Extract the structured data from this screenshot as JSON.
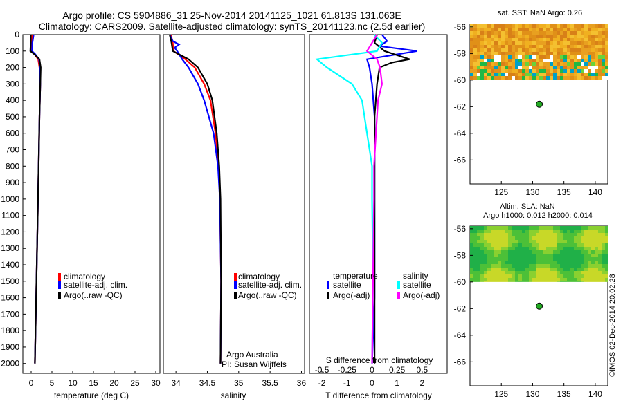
{
  "header": {
    "line1": "Argo profile: CS 5904886_31 25-Nov-2014 20141125_1021 61.813S 131.063E",
    "line2": "Climatology: CARS2009. Satellite-adjusted climatology: synTS_20141123.nc (2.5d earlier)"
  },
  "colors": {
    "climatology": "#ff0000",
    "satellite_clim": "#0000ff",
    "argo": "#000000",
    "s_satellite": "#00ffff",
    "s_argo": "#ff00ff",
    "marker": "#22aa22"
  },
  "credit": "©IMOS 02-Dec-2014 20:02:28",
  "chart_data": [
    {
      "id": "temperature",
      "type": "line",
      "xlabel": "temperature (deg C)",
      "ylabel": "",
      "xlim": [
        -2,
        31
      ],
      "ylim": [
        2060,
        0
      ],
      "xticks": [
        0,
        5,
        10,
        15,
        20,
        25,
        30
      ],
      "xticklabels": [
        "0",
        "5",
        "10",
        "15",
        "20",
        "25",
        "30"
      ],
      "yticks": [
        0,
        100,
        200,
        300,
        400,
        500,
        600,
        700,
        800,
        900,
        1000,
        1100,
        1200,
        1300,
        1400,
        1500,
        1600,
        1700,
        1800,
        1900,
        2000
      ],
      "yticklabels": [
        "0",
        "100",
        "200",
        "300",
        "400",
        "500",
        "600",
        "700",
        "800",
        "900",
        "1000",
        "1100",
        "1200",
        "1300",
        "1400",
        "1500",
        "1600",
        "1700",
        "1800",
        "1900",
        "2000"
      ],
      "legend": [
        "climatology",
        "satellite-adj. clim.",
        "Argo(..raw -QC)"
      ],
      "legend_position": "lower-center",
      "series": [
        {
          "name": "climatology",
          "color": "#ff0000",
          "depth": [
            0,
            50,
            100,
            120,
            150,
            200,
            300,
            500,
            800,
            1200,
            1600,
            2000
          ],
          "values": [
            0.2,
            0.1,
            0.2,
            0.8,
            1.7,
            2.0,
            2.2,
            2.0,
            1.8,
            1.5,
            1.2,
            0.9
          ]
        },
        {
          "name": "satellite-adj. clim.",
          "color": "#0000ff",
          "depth": [
            0,
            50,
            100,
            120,
            150,
            200,
            300,
            500,
            800,
            1200,
            1600,
            2000
          ],
          "values": [
            0.6,
            0.3,
            0.2,
            1.0,
            1.9,
            2.1,
            2.2,
            2.0,
            1.8,
            1.5,
            1.2,
            0.9
          ]
        },
        {
          "name": "Argo(..raw -QC)",
          "color": "#000000",
          "depth": [
            0,
            50,
            100,
            120,
            150,
            200,
            300,
            500,
            800,
            1200,
            1600,
            2000
          ],
          "values": [
            -0.1,
            -0.1,
            -0.2,
            0.8,
            2.0,
            2.3,
            2.2,
            2.0,
            1.8,
            1.5,
            1.2,
            0.9
          ]
        }
      ]
    },
    {
      "id": "salinity",
      "type": "line",
      "xlabel": "salinity",
      "ylabel": "",
      "xlim": [
        33.8,
        36.05
      ],
      "ylim": [
        2060,
        0
      ],
      "xticks": [
        34,
        34.5,
        35,
        35.5,
        36
      ],
      "xticklabels": [
        "34",
        "34.5",
        "35",
        "35.5",
        "36"
      ],
      "legend": [
        "climatology",
        "satellite-adj. clim.",
        "Argo(..raw -QC)"
      ],
      "legend_position": "lower-center",
      "annotations": [
        "Argo Australia",
        "PI: Susan Wijffels"
      ],
      "series": [
        {
          "name": "climatology",
          "color": "#ff0000",
          "depth": [
            0,
            50,
            100,
            150,
            200,
            300,
            400,
            600,
            800,
            1000,
            1500,
            2000
          ],
          "values": [
            33.92,
            33.95,
            33.96,
            34.15,
            34.3,
            34.45,
            34.55,
            34.63,
            34.68,
            34.7,
            34.72,
            34.71
          ]
        },
        {
          "name": "satellite-adj. clim.",
          "color": "#0000ff",
          "depth": [
            0,
            40,
            60,
            80,
            100,
            150,
            200,
            300,
            400,
            600,
            800,
            1000,
            1500,
            2000
          ],
          "values": [
            33.9,
            33.95,
            34.05,
            33.98,
            34.02,
            34.1,
            34.2,
            34.35,
            34.45,
            34.6,
            34.67,
            34.7,
            34.72,
            34.71
          ]
        },
        {
          "name": "Argo(..raw -QC)",
          "color": "#000000",
          "depth": [
            0,
            50,
            100,
            150,
            200,
            300,
            400,
            600,
            800,
            1000,
            1500,
            2000
          ],
          "values": [
            33.9,
            33.93,
            33.95,
            34.2,
            34.35,
            34.5,
            34.58,
            34.65,
            34.69,
            34.71,
            34.72,
            34.71
          ]
        }
      ]
    },
    {
      "id": "differences",
      "type": "line",
      "xlabel": "T difference from climatology",
      "xlabel_top": "S difference from climatology",
      "ylabel": "",
      "xlim": [
        -2.5,
        3.0
      ],
      "ylim": [
        2060,
        0
      ],
      "xticks": [
        -2,
        -1,
        0,
        1,
        2
      ],
      "xticklabels": [
        "-2",
        "-1",
        "0",
        "1",
        "2"
      ],
      "s_xticks": [
        -0.5,
        -0.25,
        0,
        0.25,
        0.5
      ],
      "s_xticklabels": [
        "-0.5",
        "-0.25",
        "0",
        "0.25",
        "0.5"
      ],
      "legend_groups": [
        {
          "title": "temperature",
          "entries": [
            "satellite",
            "Argo(-adj)"
          ]
        },
        {
          "title": "salinity",
          "entries": [
            "satellite",
            "Argo(-adj)"
          ]
        }
      ],
      "legend_position": "lower-center",
      "series": [
        {
          "name": "temperature satellite",
          "color": "#0000ff",
          "depth": [
            0,
            40,
            70,
            100,
            150,
            200,
            300,
            500,
            800,
            1200,
            1600,
            2000
          ],
          "values": [
            0.4,
            0.6,
            0.3,
            1.8,
            -0.2,
            -0.1,
            0.0,
            0.1,
            0.1,
            0.1,
            0.1,
            0.0
          ]
        },
        {
          "name": "temperature Argo(-adj)",
          "color": "#000000",
          "depth": [
            0,
            50,
            100,
            150,
            170,
            200,
            300,
            500,
            800,
            1200,
            1600,
            2000
          ],
          "values": [
            0.2,
            0.1,
            0.5,
            1.5,
            0.8,
            0.3,
            0.2,
            0.1,
            0.1,
            0.1,
            0.1,
            0.1
          ]
        },
        {
          "name": "salinity satellite",
          "color": "#00ffff",
          "depth": [
            0,
            50,
            100,
            150,
            200,
            300,
            400,
            600,
            800,
            1000,
            1500,
            2000
          ],
          "values": [
            0.02,
            0.1,
            0.05,
            -0.55,
            -0.45,
            -0.2,
            -0.1,
            -0.05,
            0.0,
            0.0,
            0.01,
            0.0
          ]
        },
        {
          "name": "salinity Argo(-adj)",
          "color": "#ff00ff",
          "depth": [
            0,
            50,
            100,
            150,
            200,
            300,
            400,
            600,
            800,
            1000,
            1500,
            2000
          ],
          "values": [
            0.05,
            0.0,
            -0.05,
            0.05,
            0.08,
            0.1,
            0.06,
            0.04,
            0.02,
            0.02,
            0.01,
            0.0
          ]
        }
      ]
    },
    {
      "id": "sst_map",
      "type": "heatmap",
      "title": "sat. SST: NaN Argo: 0.26",
      "xlim": [
        120,
        142
      ],
      "ylim": [
        -67.8,
        -55.8
      ],
      "xticks": [
        125,
        130,
        135,
        140
      ],
      "xticklabels": [
        "125",
        "130",
        "135",
        "140"
      ],
      "yticks": [
        -56,
        -58,
        -60,
        -62,
        -64,
        -66
      ],
      "yticklabels": [
        "-56",
        "-58",
        "-60",
        "-62",
        "-64",
        "-66"
      ],
      "data_lat_range": [
        -60,
        -55.8
      ],
      "float_position": {
        "lon": 131.063,
        "lat": -61.813
      }
    },
    {
      "id": "sla_map",
      "type": "heatmap",
      "title": "Altim. SLA: NaN",
      "subtitle": "Argo h1000: 0.012 h2000: 0.014",
      "xlim": [
        120,
        142
      ],
      "ylim": [
        -67.8,
        -55.8
      ],
      "xticks": [
        125,
        130,
        135,
        140
      ],
      "xticklabels": [
        "125",
        "130",
        "135",
        "140"
      ],
      "yticks": [
        -56,
        -58,
        -60,
        -62,
        -64,
        -66
      ],
      "yticklabels": [
        "-56",
        "-58",
        "-60",
        "-62",
        "-64",
        "-66"
      ],
      "data_lat_range": [
        -60,
        -55.8
      ],
      "float_position": {
        "lon": 131.063,
        "lat": -61.813
      }
    }
  ]
}
